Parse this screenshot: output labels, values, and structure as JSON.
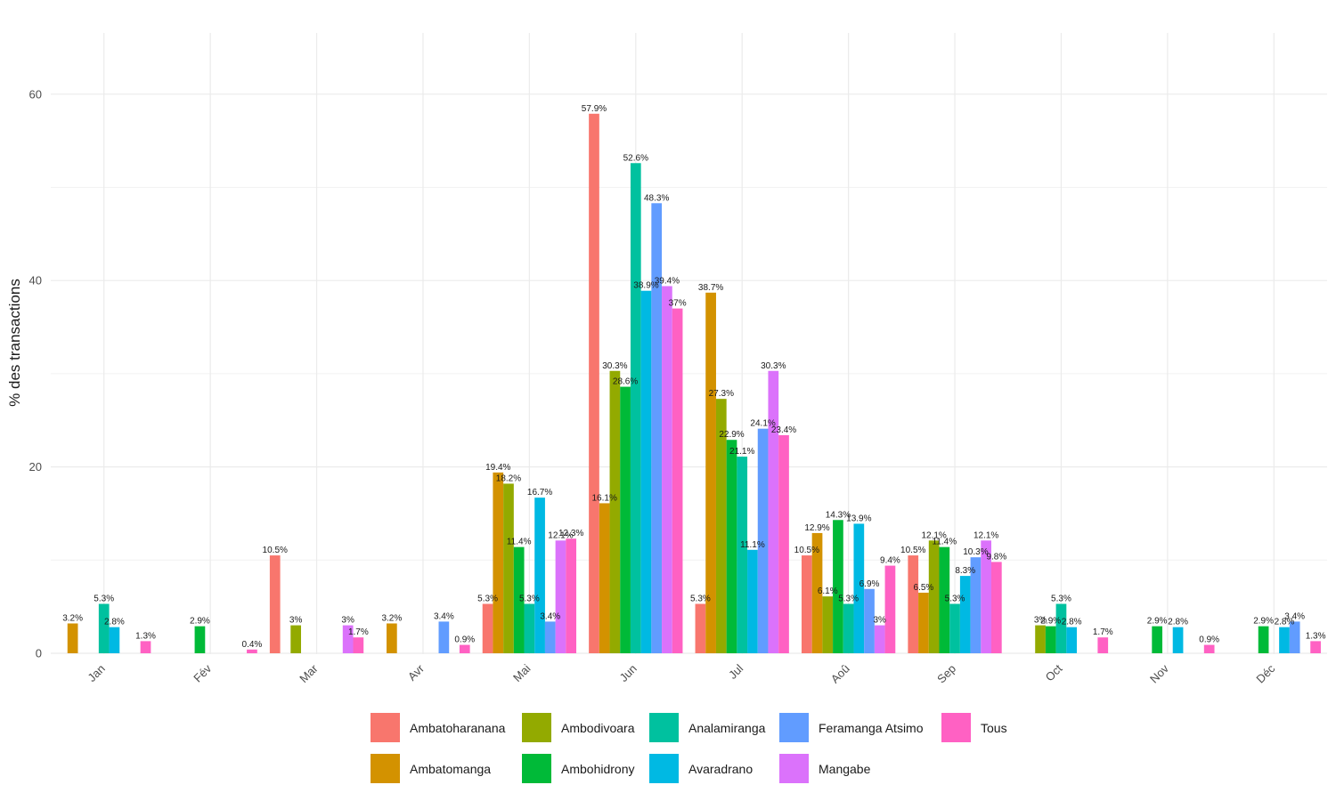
{
  "chart_data": {
    "type": "bar",
    "title": "",
    "xlabel": "",
    "ylabel": "% des transactions",
    "ylim": [
      0,
      66
    ],
    "yticks": [
      0,
      20,
      40,
      60
    ],
    "grid": true,
    "legend_position": "bottom",
    "categories": [
      "Jan",
      "Fév",
      "Mar",
      "Avr",
      "Mai",
      "Jun",
      "Jul",
      "Aoû",
      "Sep",
      "Oct",
      "Nov",
      "Déc"
    ],
    "series": [
      {
        "name": "Ambatoharanana",
        "color": "#F8766D",
        "values": [
          null,
          null,
          10.5,
          null,
          5.3,
          57.9,
          5.3,
          10.5,
          10.5,
          null,
          null,
          null
        ],
        "labels": [
          null,
          null,
          "10.5%",
          null,
          "5.3%",
          "57.9%",
          "5.3%",
          "10.5%",
          "10.5%",
          null,
          null,
          null
        ]
      },
      {
        "name": "Ambatomanga",
        "color": "#D39200",
        "values": [
          3.2,
          null,
          null,
          3.2,
          19.4,
          16.1,
          38.7,
          12.9,
          6.5,
          null,
          null,
          null
        ],
        "labels": [
          "3.2%",
          null,
          null,
          "3.2%",
          "19.4%",
          "16.1%",
          "38.7%",
          "12.9%",
          "6.5%",
          null,
          null,
          null
        ]
      },
      {
        "name": "Ambodivoara",
        "color": "#93AA00",
        "values": [
          null,
          null,
          3,
          null,
          18.2,
          30.3,
          27.3,
          6.1,
          12.1,
          3,
          null,
          null
        ],
        "labels": [
          null,
          null,
          "3%",
          null,
          "18.2%",
          "30.3%",
          "27.3%",
          "6.1%",
          "12.1%",
          "3%",
          null,
          null
        ]
      },
      {
        "name": "Ambohidrony",
        "color": "#00BA38",
        "values": [
          null,
          2.9,
          null,
          null,
          11.4,
          28.6,
          22.9,
          14.3,
          11.4,
          2.9,
          2.9,
          2.9
        ],
        "labels": [
          null,
          "2.9%",
          null,
          null,
          "11.4%",
          "28.6%",
          "22.9%",
          "14.3%",
          "11.4%",
          "2.9%",
          "2.9%",
          "2.9%"
        ]
      },
      {
        "name": "Analamiranga",
        "color": "#00C19F",
        "values": [
          5.3,
          null,
          null,
          null,
          5.3,
          52.6,
          21.1,
          5.3,
          5.3,
          5.3,
          null,
          null
        ],
        "labels": [
          "5.3%",
          null,
          null,
          null,
          "5.3%",
          "52.6%",
          "21.1%",
          "5.3%",
          "5.3%",
          "5.3%",
          null,
          null
        ]
      },
      {
        "name": "Avaradrano",
        "color": "#00B9E3",
        "values": [
          2.8,
          null,
          null,
          null,
          16.7,
          38.9,
          11.1,
          13.9,
          8.3,
          2.8,
          2.8,
          2.8
        ],
        "labels": [
          "2.8%",
          null,
          null,
          null,
          "16.7%",
          "38.9%",
          "11.1%",
          "13.9%",
          "8.3%",
          "2.8%",
          "2.8%",
          "2.8%"
        ]
      },
      {
        "name": "Feramanga Atsimo",
        "color": "#619CFF",
        "values": [
          null,
          null,
          null,
          3.4,
          3.4,
          48.3,
          24.1,
          6.9,
          10.3,
          null,
          null,
          3.4
        ],
        "labels": [
          null,
          null,
          null,
          "3.4%",
          "3.4%",
          "48.3%",
          "24.1%",
          "6.9%",
          "10.3%",
          null,
          null,
          "3.4%"
        ]
      },
      {
        "name": "Mangabe",
        "color": "#DB72FB",
        "values": [
          null,
          null,
          3,
          null,
          12.1,
          39.4,
          30.3,
          3,
          12.1,
          null,
          null,
          null
        ],
        "labels": [
          null,
          null,
          "3%",
          null,
          "12.1%",
          "39.4%",
          "30.3%",
          "3%",
          "12.1%",
          null,
          null,
          null
        ]
      },
      {
        "name": "Tous",
        "color": "#FF61C3",
        "values": [
          1.3,
          0.4,
          1.7,
          0.9,
          12.3,
          37,
          23.4,
          9.4,
          9.8,
          1.7,
          0.9,
          1.3
        ],
        "labels": [
          "1.3%",
          "0.4%",
          "1.7%",
          "0.9%",
          "12.3%",
          "37%",
          "23.4%",
          "9.4%",
          "9.8%",
          "1.7%",
          "0.9%",
          "1.3%"
        ]
      }
    ],
    "legend_order": [
      [
        "Ambatoharanana",
        "Ambodivoara",
        "Analamiranga",
        "Feramanga Atsimo",
        "Tous"
      ],
      [
        "Ambatomanga",
        "Ambohidrony",
        "Avaradrano",
        "Mangabe"
      ]
    ]
  }
}
